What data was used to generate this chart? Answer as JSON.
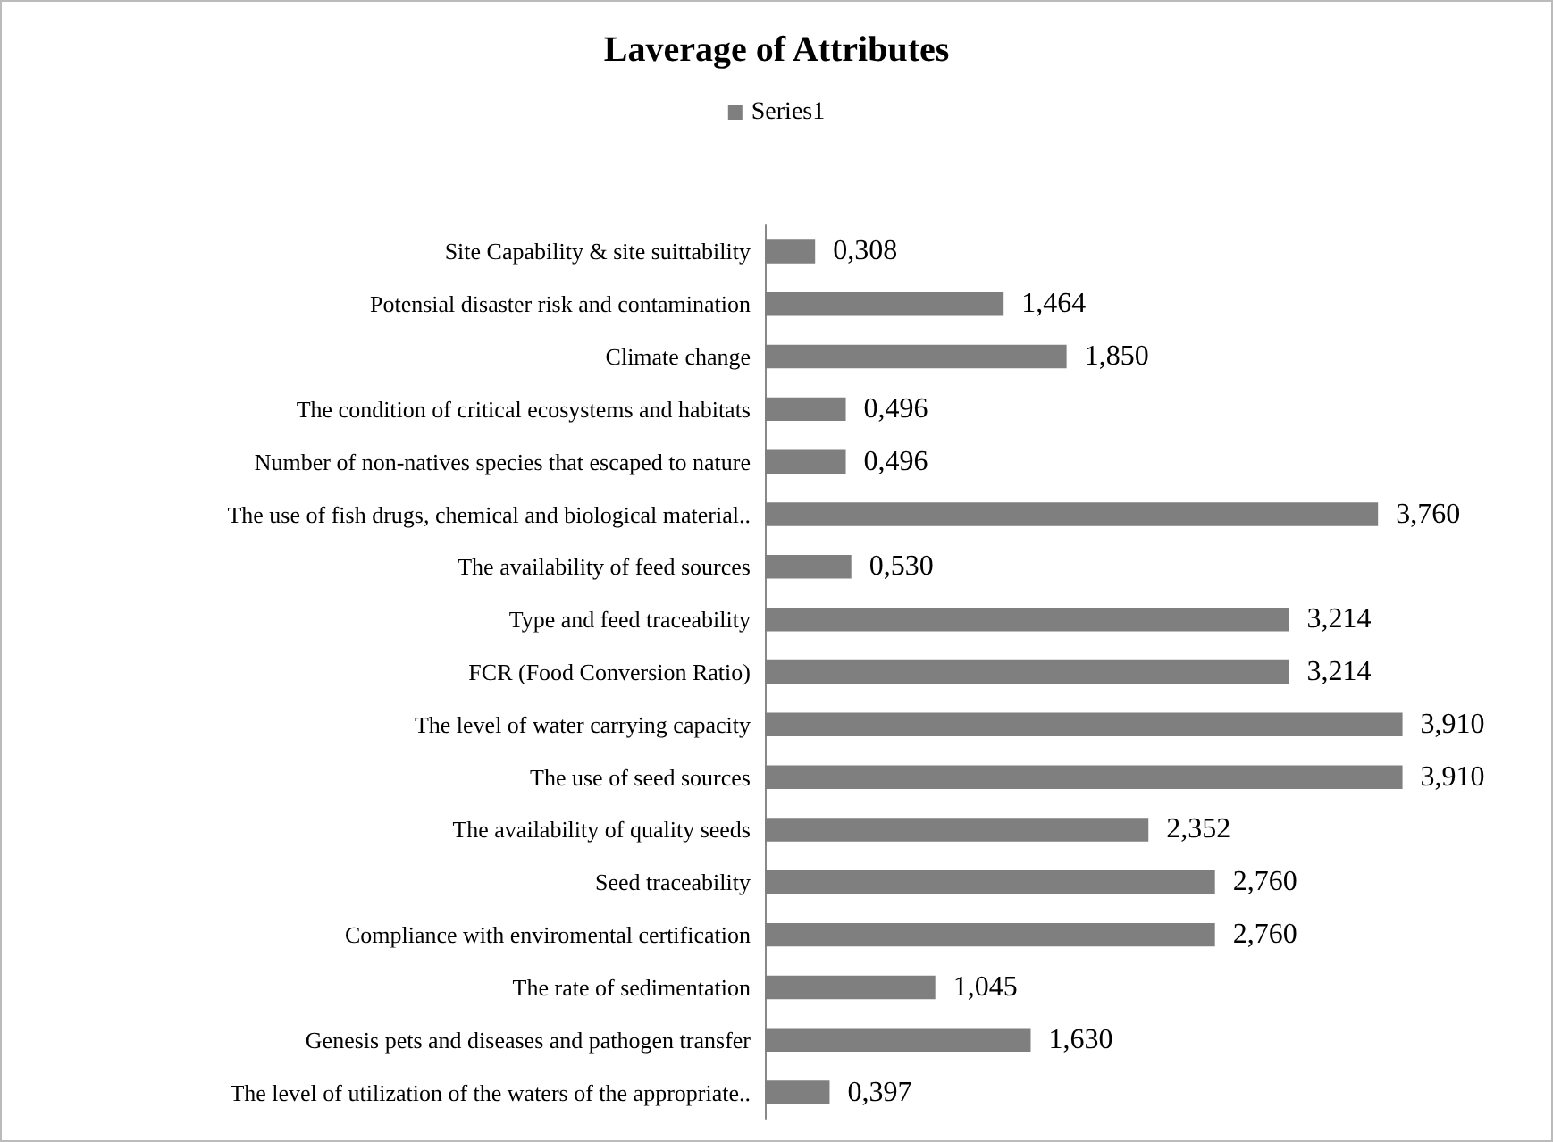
{
  "chart_data": {
    "type": "bar",
    "orientation": "horizontal",
    "title": "Laverage of Attributes",
    "categories": [
      "Site Capability & site suittability",
      "Potensial disaster risk and contamination",
      "Climate change",
      "The condition of critical ecosystems and habitats",
      "Number of non-natives species that escaped to nature",
      "The use of fish drugs, chemical and biological material..",
      "The availability of feed sources",
      "Type and feed traceability",
      "FCR (Food Conversion Ratio)",
      "The level of water carrying capacity",
      "The use of seed sources",
      "The availability of quality seeds",
      "Seed traceability",
      "Compliance with enviromental certification",
      "The rate of sedimentation",
      "Genesis pets and diseases and pathogen transfer",
      "The level of utilization of the waters of the appropriate.."
    ],
    "series": [
      {
        "name": "Series1",
        "color": "#7f7f7f",
        "values": [
          0.308,
          1.464,
          1.85,
          0.496,
          0.496,
          3.76,
          0.53,
          3.214,
          3.214,
          3.91,
          3.91,
          2.352,
          2.76,
          2.76,
          1.045,
          1.63,
          0.397
        ],
        "value_labels": [
          "0,308",
          "1,464",
          "1,850",
          "0,496",
          "0,496",
          "3,760",
          "0,530",
          "3,214",
          "3,214",
          "3,910",
          "3,910",
          "2,352",
          "2,760",
          "2,760",
          "1,045",
          "1,630",
          "0,397"
        ]
      }
    ],
    "legend": "top",
    "grid": false,
    "tick_labels": "y"
  }
}
